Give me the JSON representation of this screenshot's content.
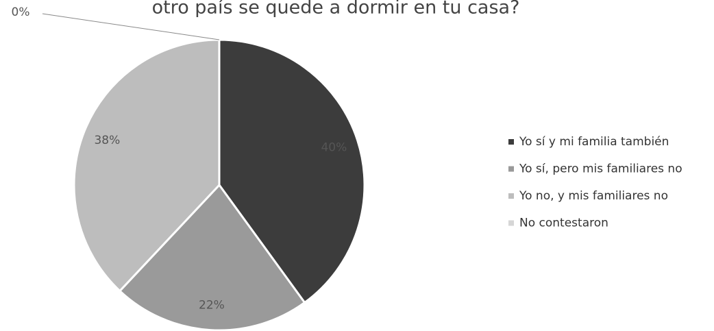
{
  "chart_data": {
    "type": "pie",
    "title": "otro país se quede a dormir en tu casa?",
    "categories": [
      "Yo sí y mi familia también",
      "Yo sí, pero mis familiares no",
      "Yo no, y mis familiares no",
      "No contestaron"
    ],
    "values": [
      40,
      22,
      38,
      0
    ],
    "value_labels": [
      "40%",
      "22%",
      "38%",
      "0%"
    ],
    "colors": [
      "#3c3c3c",
      "#9a9a9a",
      "#bdbdbd",
      "#d6d6d6"
    ],
    "legend": "right"
  }
}
